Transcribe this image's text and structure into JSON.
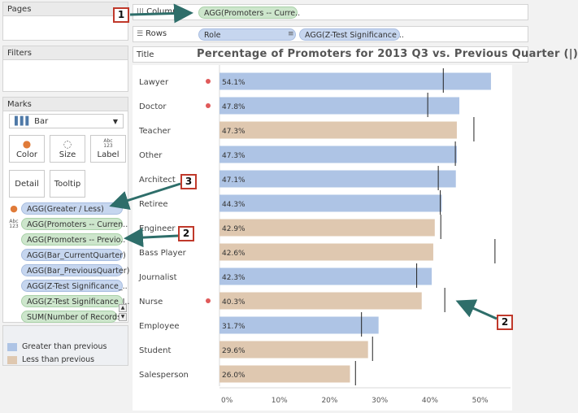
{
  "cards": {
    "pages": "Pages",
    "filters": "Filters",
    "marks": "Marks"
  },
  "marks": {
    "type": "Bar",
    "buttons": {
      "color": "Color",
      "size": "Size",
      "label": "Label",
      "label_abc": "Abc\n123",
      "detail": "Detail",
      "tooltip": "Tooltip"
    },
    "pills": [
      "AGG(Greater / Less)",
      "AGG(Promoters -- Curren..",
      "AGG(Promoters -- Previo..",
      "AGG(Bar_CurrentQuarter)",
      "AGG(Bar_PreviousQuarter)",
      "AGG(Z-Test Significance_..",
      "AGG(Z-Test Significance_I..",
      "SUM(Number of Records)"
    ],
    "label_icon": "Abc 123"
  },
  "legend": {
    "items": [
      {
        "label": "Greater than previous",
        "color": "#aec4e5"
      },
      {
        "label": "Less than previous",
        "color": "#dfc8b0"
      }
    ]
  },
  "shelves": {
    "columns_label": "Columns",
    "columns_pill": "AGG(Promoters -- Curre..",
    "rows_label": "Rows",
    "rows_pill1": "Role",
    "rows_pill2": "AGG(Z-Test Significance ..",
    "sort_icon": "sort-descending-icon"
  },
  "title": {
    "tag": "Title",
    "text": "Percentage of Promoters for 2013 Q3 vs. Previous Quarter (|)"
  },
  "callouts": [
    "1",
    "2",
    "3",
    "2"
  ],
  "colors": {
    "greater": "#aec4e5",
    "less": "#dfc8b0",
    "significance_dot": "#e05a5a",
    "callout_border": "#c0392b",
    "arrow": "#2e6e6a"
  },
  "chart_data": {
    "type": "bar",
    "orientation": "horizontal",
    "categories": [
      "Lawyer",
      "Doctor",
      "Teacher",
      "Other",
      "Architect",
      "Retiree",
      "Engineer",
      "Bass Player",
      "Journalist",
      "Nurse",
      "Employee",
      "Student",
      "Salesperson"
    ],
    "values": [
      54.1,
      47.8,
      47.3,
      47.3,
      47.1,
      44.3,
      42.9,
      42.6,
      42.3,
      40.3,
      31.7,
      29.6,
      26.0
    ],
    "labels": [
      "54.1%",
      "47.8%",
      "47.3%",
      "47.3%",
      "47.1%",
      "44.3%",
      "42.9%",
      "42.6%",
      "42.3%",
      "40.3%",
      "31.7%",
      "29.6%",
      "26.0%"
    ],
    "direction": [
      "greater",
      "greater",
      "less",
      "greater",
      "greater",
      "greater",
      "less",
      "less",
      "greater",
      "less",
      "greater",
      "less",
      "less"
    ],
    "previous_quarter": [
      44.6,
      41.5,
      50.7,
      47.0,
      43.6,
      44.0,
      44.1,
      54.9,
      39.3,
      44.9,
      28.3,
      30.5,
      27.1
    ],
    "significant": [
      true,
      true,
      false,
      false,
      false,
      false,
      false,
      false,
      false,
      true,
      false,
      false,
      false
    ],
    "xlim": [
      0,
      58
    ],
    "xticks": [
      "0%",
      "10%",
      "20%",
      "30%",
      "40%",
      "50%"
    ],
    "xtick_values": [
      0,
      10,
      20,
      30,
      40,
      50
    ],
    "xlabel": "",
    "ylabel": ""
  }
}
